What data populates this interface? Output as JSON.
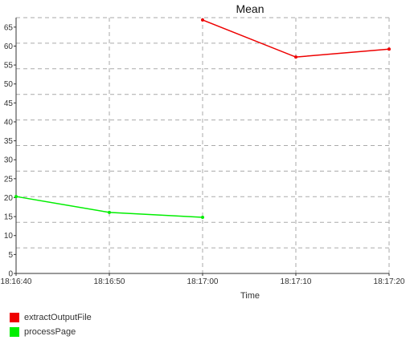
{
  "chart_data": {
    "type": "line",
    "title": "Mean",
    "xlabel": "Time",
    "ylabel": "",
    "x_ticks": [
      "18:16:40",
      "18:16:50",
      "18:17:00",
      "18:17:10",
      "18:17:20"
    ],
    "y_ticks": [
      0,
      5,
      10,
      15,
      20,
      25,
      30,
      35,
      40,
      45,
      50,
      55,
      60,
      65
    ],
    "ylim": [
      0,
      67.5
    ],
    "grid": true,
    "legend_position": "bottom-left",
    "series": [
      {
        "name": "extractOutputFile",
        "color": "#ee0000",
        "points": [
          {
            "x": "18:17:00",
            "y": 66.9
          },
          {
            "x": "18:17:10",
            "y": 57.1
          },
          {
            "x": "18:17:20",
            "y": 59.2
          }
        ]
      },
      {
        "name": "processPage",
        "color": "#00ee00",
        "points": [
          {
            "x": "18:16:40",
            "y": 20.3
          },
          {
            "x": "18:16:50",
            "y": 16.1
          },
          {
            "x": "18:17:00",
            "y": 14.8
          }
        ]
      }
    ]
  }
}
